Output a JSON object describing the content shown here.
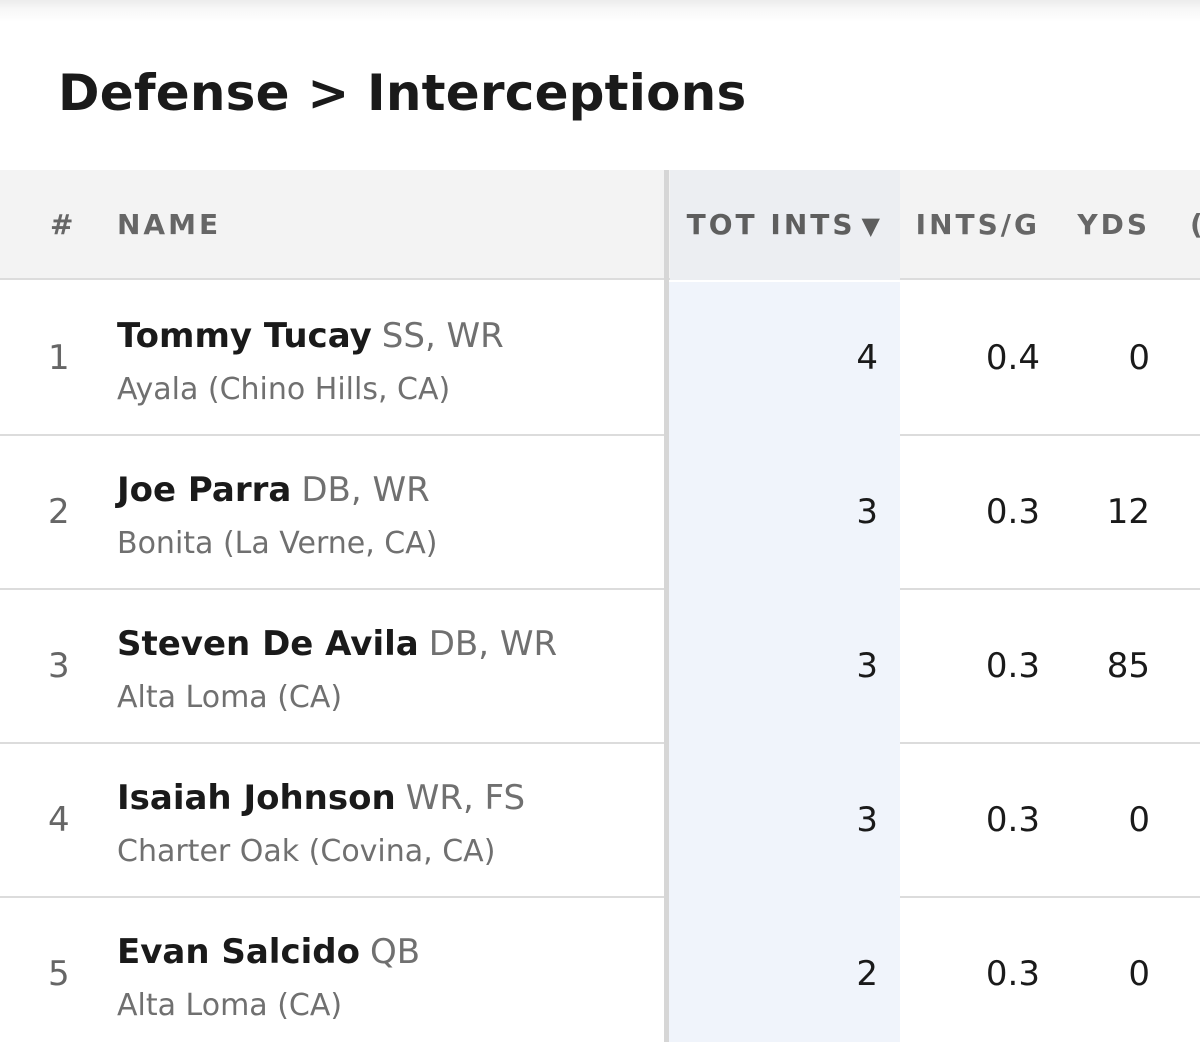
{
  "title": "Defense > Interceptions",
  "columns": {
    "rank": "#",
    "name": "NAME",
    "tot_ints": "TOT INTS",
    "sort_indicator": "▼",
    "ints_per_game": "INTS/G",
    "yds": "YDS",
    "next_partial": "("
  },
  "rows": [
    {
      "rank": "1",
      "name": "Tommy Tucay",
      "positions": "SS, WR",
      "school": "Ayala (Chino Hills, CA)",
      "tot_ints": "4",
      "ints_per_game": "0.4",
      "yds": "0"
    },
    {
      "rank": "2",
      "name": "Joe Parra",
      "positions": "DB, WR",
      "school": "Bonita (La Verne, CA)",
      "tot_ints": "3",
      "ints_per_game": "0.3",
      "yds": "12"
    },
    {
      "rank": "3",
      "name": "Steven De Avila",
      "positions": "DB, WR",
      "school": "Alta Loma (CA)",
      "tot_ints": "3",
      "ints_per_game": "0.3",
      "yds": "85"
    },
    {
      "rank": "4",
      "name": "Isaiah Johnson",
      "positions": "WR, FS",
      "school": "Charter Oak (Covina, CA)",
      "tot_ints": "3",
      "ints_per_game": "0.3",
      "yds": "0"
    },
    {
      "rank": "5",
      "name": "Evan Salcido",
      "positions": "QB",
      "school": "Alta Loma (CA)",
      "tot_ints": "2",
      "ints_per_game": "0.3",
      "yds": "0"
    }
  ],
  "colors": {
    "header_bg": "#f3f3f3",
    "sorted_column_bg": "#f0f4fb",
    "divider": "#dcdcdc",
    "text_primary": "#1a1a1a",
    "text_secondary": "#707070"
  },
  "sort": {
    "column": "tot_ints",
    "direction": "descending"
  }
}
